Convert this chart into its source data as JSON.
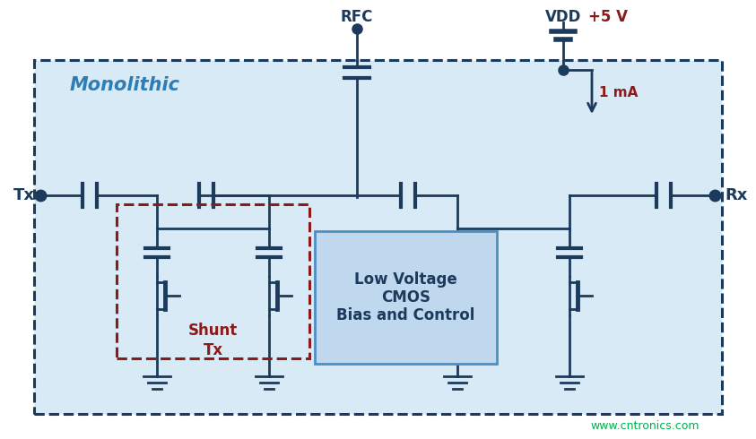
{
  "bg_color": "#ffffff",
  "dark_blue": "#1b3a5c",
  "light_blue_fill": "#d8eaf6",
  "inner_box_fill": "#c0d8ee",
  "dark_red": "#8b1a1a",
  "cyan_green": "#00b050",
  "title_text": "Monolithic",
  "rfc_label": "RFC",
  "vdd_label": "VDD",
  "vdd_value": "+5 V",
  "current_label": "1 mA",
  "tx_label": "Tx",
  "rx_label": "Rx",
  "shunt_label_line1": "Tx",
  "shunt_label_line2": "Shunt",
  "bias_label_line1": "Low Voltage",
  "bias_label_line2": "CMOS",
  "bias_label_line3": "Bias and Control",
  "watermark": "www.cntronics.com"
}
